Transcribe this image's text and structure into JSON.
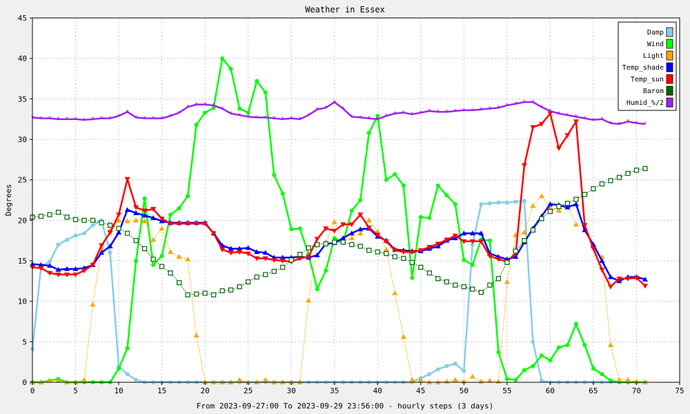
{
  "chart_data": {
    "type": "line",
    "title": "Weather in Essex",
    "xlabel": "From 2023-09-27:00 To 2023-09-29 23:56:00 - hourly steps (3 days)",
    "ylabel": "Degrees",
    "xlim": [
      0,
      75
    ],
    "ylim": [
      0,
      45
    ],
    "xticks": [
      "0",
      "5",
      "10",
      "15",
      "20",
      "25",
      "30",
      "35",
      "40",
      "45",
      "50",
      "55",
      "60",
      "65",
      "70",
      "75"
    ],
    "yticks": [
      "0",
      "5",
      "10",
      "15",
      "20",
      "25",
      "30",
      "35",
      "40",
      "45"
    ],
    "grid": true,
    "legend_position": "top-right",
    "series": [
      {
        "name": "Damp",
        "color": "#87ceeb",
        "marker": "circle",
        "line": "solid",
        "values": [
          4.1,
          14.3,
          14.9,
          17.0,
          17.6,
          18.1,
          18.4,
          19.4,
          20.0,
          16.0,
          2.0,
          1.0,
          0.3,
          0,
          0,
          0,
          0,
          0,
          0,
          0,
          0,
          0,
          0,
          0,
          0,
          0,
          0,
          0,
          0,
          0,
          0,
          0,
          0,
          0,
          0,
          0,
          0,
          0,
          0,
          0,
          0,
          0,
          0,
          0,
          0,
          0.5,
          1.0,
          1.6,
          2.0,
          2.3,
          1.4,
          17.0,
          22.0,
          22.1,
          22.2,
          22.2,
          22.3,
          22.4,
          5.0,
          0.2,
          0,
          0,
          0,
          0,
          0,
          0,
          0,
          0,
          0,
          0,
          0,
          0
        ]
      },
      {
        "name": "Wind",
        "color": "#00ff00",
        "marker": "circle",
        "line": "solid",
        "values": [
          0,
          0,
          0.2,
          0.4,
          0,
          0,
          0,
          0,
          0,
          0,
          1.7,
          4.2,
          15.0,
          22.7,
          14.5,
          15.6,
          20.7,
          21.5,
          23.0,
          31.8,
          33.3,
          33.9,
          40.0,
          38.7,
          33.8,
          33.3,
          37.2,
          35.8,
          25.6,
          23.3,
          18.9,
          19.0,
          15.8,
          11.5,
          13.8,
          17.8,
          17.2,
          21.2,
          22.5,
          30.8,
          32.9,
          25.0,
          25.7,
          24.3,
          12.9,
          20.4,
          20.3,
          24.3,
          23.1,
          22.0,
          15.1,
          14.5,
          17.6,
          17.5,
          3.7,
          0.4,
          0.3,
          1.5,
          2.0,
          3.3,
          2.7,
          4.3,
          4.6,
          7.2,
          4.6,
          1.7,
          1.0,
          0.2,
          0,
          0,
          0,
          0
        ]
      },
      {
        "name": "Light",
        "color": "#ffa500",
        "marker": "triangle",
        "line": "dotted",
        "values": [
          0,
          0,
          0.2,
          0.2,
          0,
          0,
          0.3,
          9.6,
          16.5,
          18.8,
          20.0,
          19.9,
          20.0,
          19.9,
          17.6,
          19.0,
          16.1,
          15.5,
          15.2,
          5.8,
          0,
          0,
          0,
          0,
          0.3,
          0,
          0,
          0.3,
          0,
          0,
          0,
          0,
          10.1,
          17.0,
          17.3,
          19.8,
          17.5,
          17.8,
          18.4,
          20.0,
          18.6,
          16.4,
          11.0,
          5.6,
          0.3,
          0.3,
          0,
          0,
          0.1,
          0.3,
          0.1,
          0.7,
          0.1,
          0.2,
          0.1,
          12.4,
          18.2,
          18.5,
          21.8,
          23.0,
          21.6,
          21.2,
          21.8,
          19.5,
          19.1,
          17.0,
          15.5,
          4.6,
          0.3,
          0.3,
          0.1,
          0
        ]
      },
      {
        "name": "Temp_shade",
        "color": "#0000ff",
        "marker": "triangle",
        "line": "solid",
        "values": [
          14.6,
          14.5,
          14.4,
          13.9,
          14.0,
          14.0,
          14.1,
          14.5,
          16.0,
          16.8,
          18.5,
          21.3,
          20.9,
          20.6,
          20.3,
          19.9,
          19.7,
          19.7,
          19.7,
          19.7,
          19.7,
          18.4,
          16.9,
          16.5,
          16.5,
          16.6,
          16.1,
          16.0,
          15.4,
          15.4,
          15.4,
          15.5,
          15.4,
          15.7,
          17.1,
          17.2,
          17.8,
          18.4,
          18.9,
          19.0,
          18.0,
          17.5,
          16.4,
          16.3,
          16.2,
          16.2,
          16.5,
          16.8,
          17.5,
          17.8,
          18.4,
          18.4,
          18.4,
          15.9,
          15.5,
          15.2,
          15.5,
          17.3,
          19.0,
          20.5,
          22.0,
          21.9,
          21.6,
          22.0,
          18.8,
          17.0,
          15.0,
          13.0,
          12.5,
          13.0,
          13.0,
          12.7
        ]
      },
      {
        "name": "Temp_sun",
        "color": "#ff0000",
        "marker": "triangle-down",
        "line": "solid",
        "values": [
          14.2,
          14.1,
          13.5,
          13.3,
          13.3,
          13.3,
          13.8,
          14.5,
          16.9,
          18.5,
          20.7,
          25.1,
          21.6,
          21.2,
          21.4,
          20.2,
          19.6,
          19.6,
          19.6,
          19.6,
          19.6,
          18.4,
          16.4,
          16.0,
          16.1,
          15.9,
          15.3,
          15.3,
          15.1,
          15.0,
          14.9,
          15.3,
          15.5,
          17.7,
          19.0,
          18.7,
          19.5,
          19.5,
          20.7,
          19.1,
          18.2,
          17.4,
          16.3,
          16.1,
          16.1,
          16.3,
          16.7,
          17.1,
          17.6,
          18.1,
          17.4,
          17.4,
          17.4,
          15.6,
          15.2,
          14.9,
          15.9,
          26.8,
          31.5,
          31.9,
          33.2,
          28.9,
          30.5,
          32.2,
          19.4,
          16.5,
          13.9,
          11.8,
          12.8,
          12.8,
          12.9,
          11.9
        ]
      },
      {
        "name": "Barom",
        "color": "#006400",
        "marker": "square",
        "line": "dotted",
        "values": [
          20.4,
          20.5,
          20.7,
          21.0,
          20.4,
          20.1,
          20.0,
          20.0,
          19.7,
          19.4,
          19.0,
          18.4,
          17.5,
          16.5,
          15.2,
          14.3,
          13.5,
          12.3,
          10.8,
          10.9,
          11.0,
          10.8,
          11.3,
          11.4,
          11.8,
          12.4,
          13.0,
          13.3,
          13.7,
          14.2,
          15.1,
          15.8,
          16.6,
          17.0,
          17.1,
          17.3,
          17.3,
          17.0,
          16.8,
          16.3,
          16.1,
          15.9,
          15.5,
          15.3,
          14.8,
          14.2,
          13.5,
          12.8,
          12.4,
          12.0,
          11.8,
          11.5,
          11.1,
          12.0,
          12.8,
          14.8,
          16.2,
          17.5,
          18.8,
          20.2,
          21.1,
          21.7,
          22.1,
          22.6,
          23.2,
          23.9,
          24.5,
          24.9,
          25.3,
          25.8,
          26.2,
          26.4
        ]
      },
      {
        "name": "Humid_%/2",
        "color": "#a020f0",
        "marker": "star",
        "line": "solid",
        "values": [
          32.7,
          32.6,
          32.6,
          32.5,
          32.5,
          32.5,
          32.4,
          32.5,
          32.6,
          32.6,
          32.9,
          33.4,
          32.7,
          32.6,
          32.6,
          32.6,
          32.9,
          33.3,
          34.0,
          34.3,
          34.3,
          34.2,
          33.8,
          33.2,
          33.0,
          32.8,
          32.7,
          32.7,
          32.6,
          32.5,
          32.6,
          32.5,
          33.0,
          33.7,
          33.9,
          34.6,
          33.8,
          32.8,
          32.7,
          32.6,
          32.5,
          32.9,
          33.2,
          33.3,
          33.1,
          33.3,
          33.5,
          33.4,
          33.4,
          33.5,
          33.6,
          33.6,
          33.7,
          33.8,
          33.9,
          34.2,
          34.4,
          34.6,
          34.6,
          34.0,
          33.5,
          33.2,
          33.0,
          32.8,
          32.6,
          32.4,
          32.5,
          32.0,
          31.9,
          32.2,
          32.0,
          31.9
        ]
      }
    ]
  }
}
